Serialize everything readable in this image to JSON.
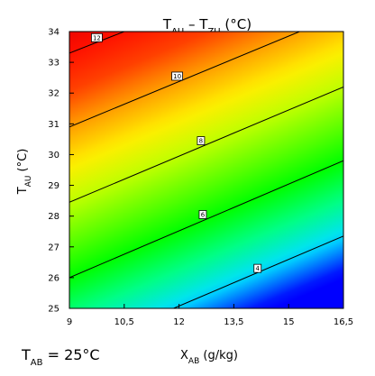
{
  "chart_data": {
    "type": "heatmap",
    "title": {
      "main": "T",
      "sub1": "AU",
      "mid": " – T",
      "sub2": "ZU",
      "unit": " (°C)"
    },
    "xlabel": {
      "main": "X",
      "sub": "AB",
      "unit": " (g/kg)"
    },
    "ylabel": {
      "main": "T",
      "sub": "AU",
      "unit": " (°C)"
    },
    "annotation": {
      "main": "T",
      "sub": "AB",
      "rest": " = 25°C"
    },
    "x_range": [
      9,
      16.5
    ],
    "y_range": [
      25,
      34
    ],
    "x_ticks": [
      {
        "value": 9,
        "label": "9"
      },
      {
        "value": 10.5,
        "label": "10,5"
      },
      {
        "value": 12,
        "label": "12"
      },
      {
        "value": 13.5,
        "label": "13,5"
      },
      {
        "value": 15,
        "label": "15"
      },
      {
        "value": 16.5,
        "label": "16,5"
      }
    ],
    "y_ticks": [
      {
        "value": 25,
        "label": "25"
      },
      {
        "value": 26,
        "label": "26"
      },
      {
        "value": 27,
        "label": "27"
      },
      {
        "value": 28,
        "label": "28"
      },
      {
        "value": 29,
        "label": "29"
      },
      {
        "value": 30,
        "label": "30"
      },
      {
        "value": 31,
        "label": "31"
      },
      {
        "value": 32,
        "label": "32"
      },
      {
        "value": 33,
        "label": "33"
      },
      {
        "value": 34,
        "label": "34"
      }
    ],
    "contours": [
      {
        "level": 4,
        "label": "4",
        "points": [
          [
            11.85,
            25
          ],
          [
            16.5,
            27.35
          ]
        ],
        "label_at": [
          14.15,
          26.3
        ]
      },
      {
        "level": 6,
        "label": "6",
        "points": [
          [
            9,
            26.0
          ],
          [
            16.5,
            29.8
          ]
        ],
        "label_at": [
          12.65,
          28.05
        ]
      },
      {
        "level": 8,
        "label": "8",
        "points": [
          [
            9,
            28.45
          ],
          [
            16.5,
            32.2
          ]
        ],
        "label_at": [
          12.6,
          30.45
        ]
      },
      {
        "level": 10,
        "label": "10",
        "points": [
          [
            9,
            30.9
          ],
          [
            15.3,
            34
          ]
        ],
        "label_at": [
          11.95,
          32.55
        ]
      },
      {
        "level": 12,
        "label": "12",
        "points": [
          [
            9,
            33.3
          ],
          [
            10.5,
            34
          ]
        ],
        "label_at": [
          9.75,
          33.8
        ]
      }
    ],
    "color_scale": [
      {
        "level": 3,
        "color": "#0000ff"
      },
      {
        "level": 4,
        "color": "#00e0ff"
      },
      {
        "level": 5,
        "color": "#00ff80"
      },
      {
        "level": 6,
        "color": "#00ff00"
      },
      {
        "level": 7,
        "color": "#60ff00"
      },
      {
        "level": 8,
        "color": "#bfff00"
      },
      {
        "level": 9,
        "color": "#ffee00"
      },
      {
        "level": 10,
        "color": "#ffa000"
      },
      {
        "level": 11,
        "color": "#ff4000"
      },
      {
        "level": 12,
        "color": "#ff1000"
      },
      {
        "level": 13,
        "color": "#e00000"
      }
    ],
    "grid": false,
    "legend": "none"
  }
}
